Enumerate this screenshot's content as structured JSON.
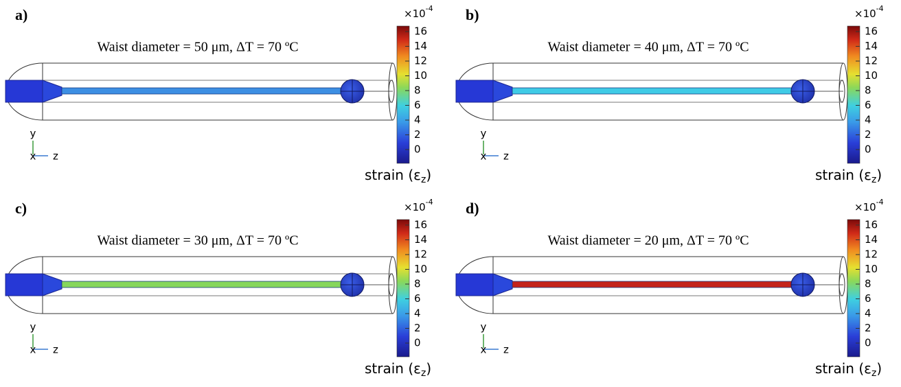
{
  "panels": [
    {
      "label": "a)",
      "title": "Waist diameter = 50 μm, ΔT = 70 ºC",
      "fiber_color": "#3d8fe3"
    },
    {
      "label": "b)",
      "title": "Waist diameter = 40 μm, ΔT = 70 ºC",
      "fiber_color": "#3fcbe6"
    },
    {
      "label": "c)",
      "title": "Waist diameter = 30 μm, ΔT = 70 ºC",
      "fiber_color": "#86d65c"
    },
    {
      "label": "d)",
      "title": "Waist diameter = 20 μm, ΔT = 70 ºC",
      "fiber_color": "#c4231a"
    }
  ],
  "colorbar": {
    "multiplier": "×10",
    "exponent": "-4",
    "ticks": [
      16,
      14,
      12,
      10,
      8,
      6,
      4,
      2,
      0
    ],
    "label": "strain (ε",
    "label_sub": "z",
    "label_end": ")"
  },
  "axes": {
    "y": "y",
    "x": "x",
    "z": "z"
  }
}
